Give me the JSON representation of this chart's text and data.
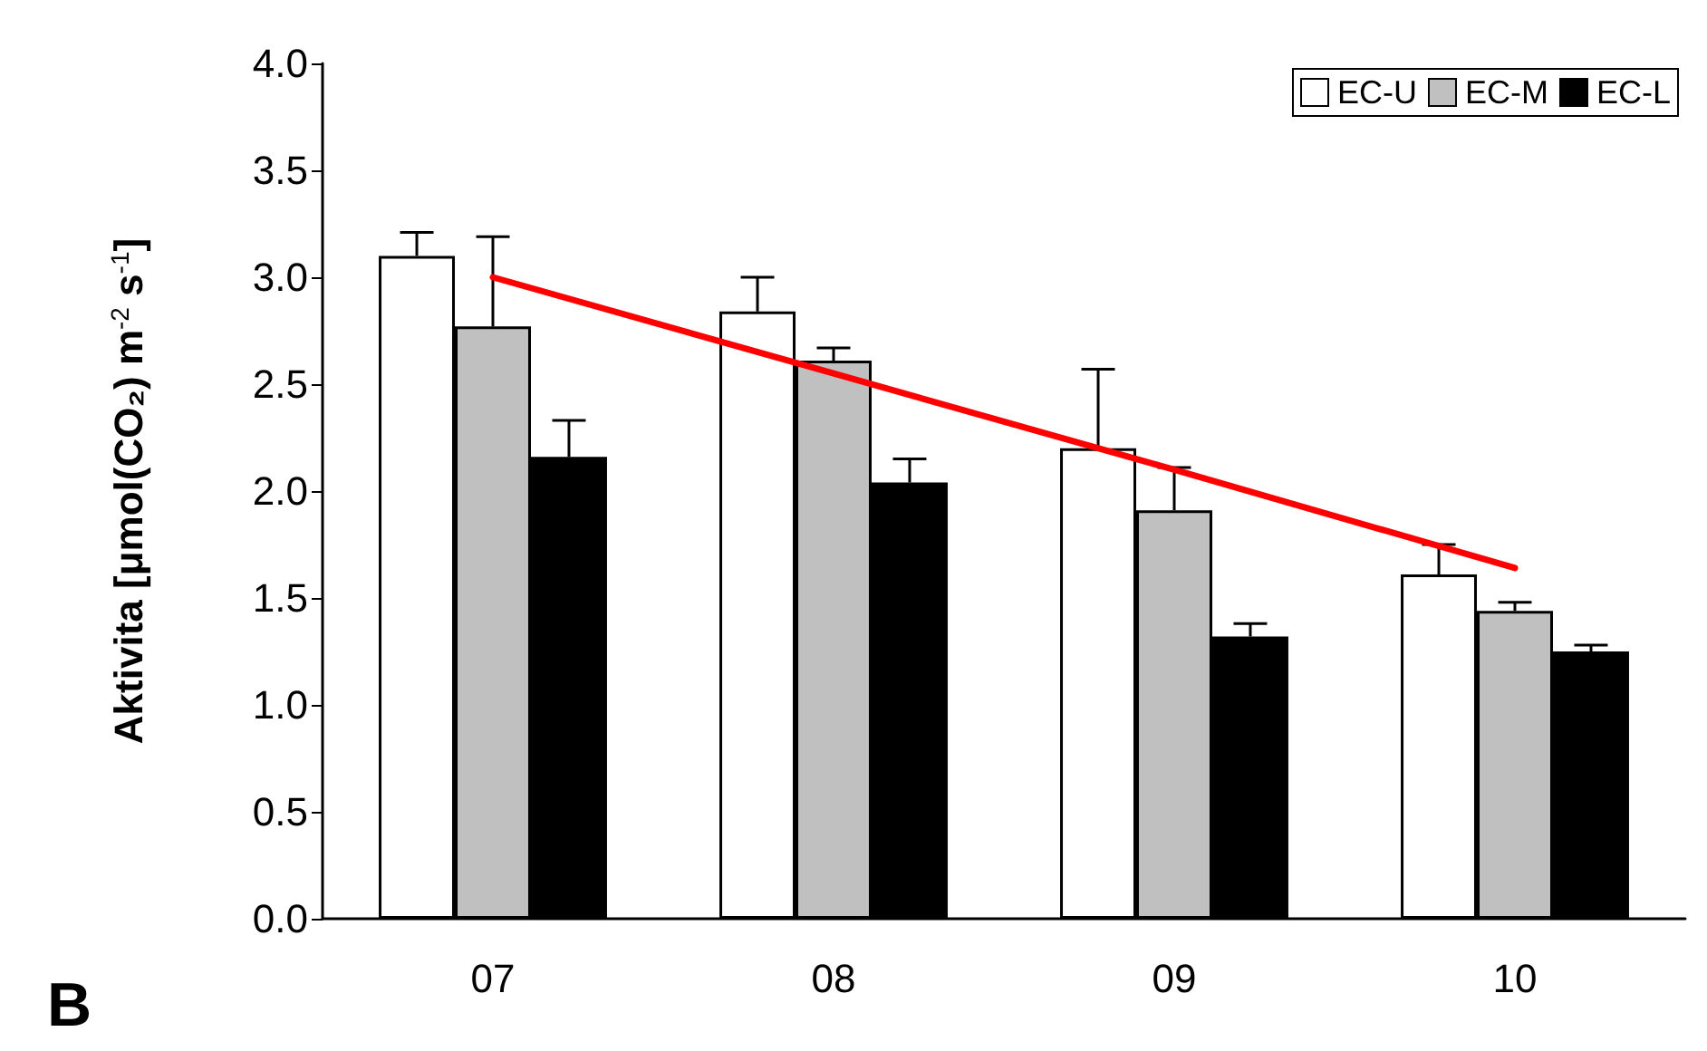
{
  "chart_data": {
    "type": "bar",
    "ylabel": "Aktivita [μmol(CO₂) m$^{-2}$ s$^{-1}$]",
    "categories": [
      "07",
      "08",
      "09",
      "10"
    ],
    "series": [
      {
        "name": "EC-U",
        "color": "#ffffff",
        "values": [
          3.1,
          2.84,
          2.2,
          1.61
        ],
        "errors": [
          [
            3.1,
            3.21
          ],
          [
            2.84,
            3.0
          ],
          [
            2.2,
            2.57
          ],
          [
            1.61,
            1.75
          ]
        ]
      },
      {
        "name": "EC-M",
        "color": "#c0c0c0",
        "values": [
          2.77,
          2.61,
          1.91,
          1.44
        ],
        "errors": [
          [
            2.77,
            3.19
          ],
          [
            2.61,
            2.67
          ],
          [
            1.91,
            2.11
          ],
          [
            1.44,
            1.48
          ]
        ]
      },
      {
        "name": "EC-L",
        "color": "#000000",
        "values": [
          2.16,
          2.04,
          1.32,
          1.25
        ],
        "errors": [
          [
            2.16,
            2.33
          ],
          [
            2.04,
            2.15
          ],
          [
            1.32,
            1.38
          ],
          [
            1.25,
            1.28
          ]
        ]
      },
      {
        "type": "line",
        "color": "#ff0000",
        "values": [
          3.0,
          2.55,
          2.1,
          1.64
        ]
      }
    ],
    "ylim": [
      0,
      4
    ],
    "yticks": [
      {
        "value": 0,
        "label": "0.0"
      },
      {
        "value": 0.5,
        "label": "0.5"
      },
      {
        "value": 1,
        "label": "1.0"
      },
      {
        "value": 1.5,
        "label": "1.5"
      },
      {
        "value": 2,
        "label": "2.0"
      },
      {
        "value": 2.5,
        "label": "2.5"
      },
      {
        "value": 3,
        "label": "3.0"
      },
      {
        "value": 3.5,
        "label": "3.5"
      },
      {
        "value": 4,
        "label": "4.0"
      }
    ],
    "grid": false,
    "legend": "top right",
    "marker": "none",
    "annotations": [
      "B"
    ]
  }
}
